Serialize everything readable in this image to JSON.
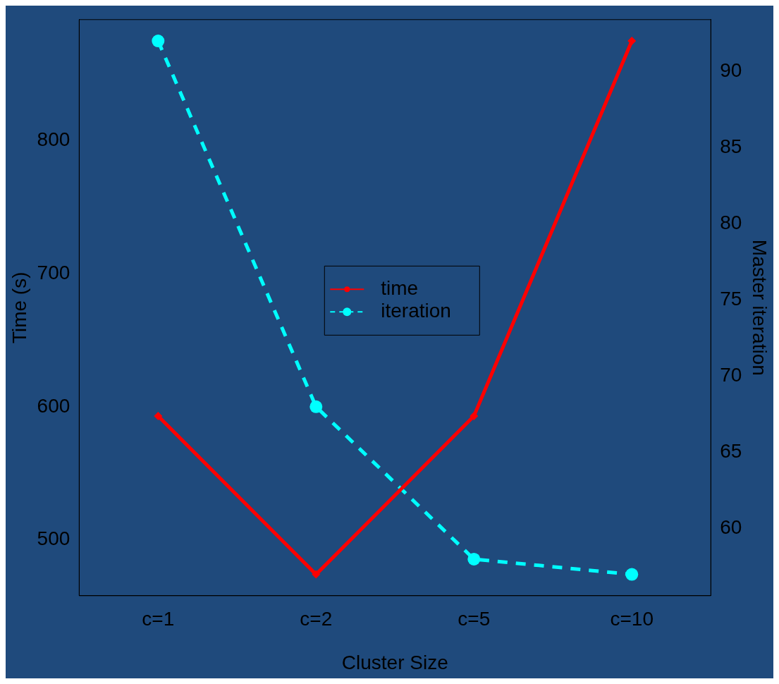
{
  "chart_data": {
    "type": "line",
    "xlabel": "Cluster Size",
    "ylabel": "Time (s)",
    "y2label": "Master iteration",
    "categories": [
      "c=1",
      "c=2",
      "c=5",
      "c=10"
    ],
    "series": [
      {
        "name": "time",
        "color": "#ff0000",
        "values": [
          593,
          474,
          593,
          875
        ],
        "marker": "diamond",
        "line_style": "solid"
      },
      {
        "name": "iteration",
        "color": "#00ffff",
        "values": [
          92,
          68,
          58,
          57
        ],
        "axis": "y2",
        "marker": "circle",
        "line_style": "dashed"
      }
    ],
    "ylim": [
      458,
      891
    ],
    "yticks": [
      500,
      600,
      700,
      800
    ],
    "y2lim": [
      55.6,
      93.4
    ],
    "y2ticks": [
      60,
      65,
      70,
      75,
      80,
      85,
      90
    ],
    "grid": false,
    "legend": "center"
  }
}
